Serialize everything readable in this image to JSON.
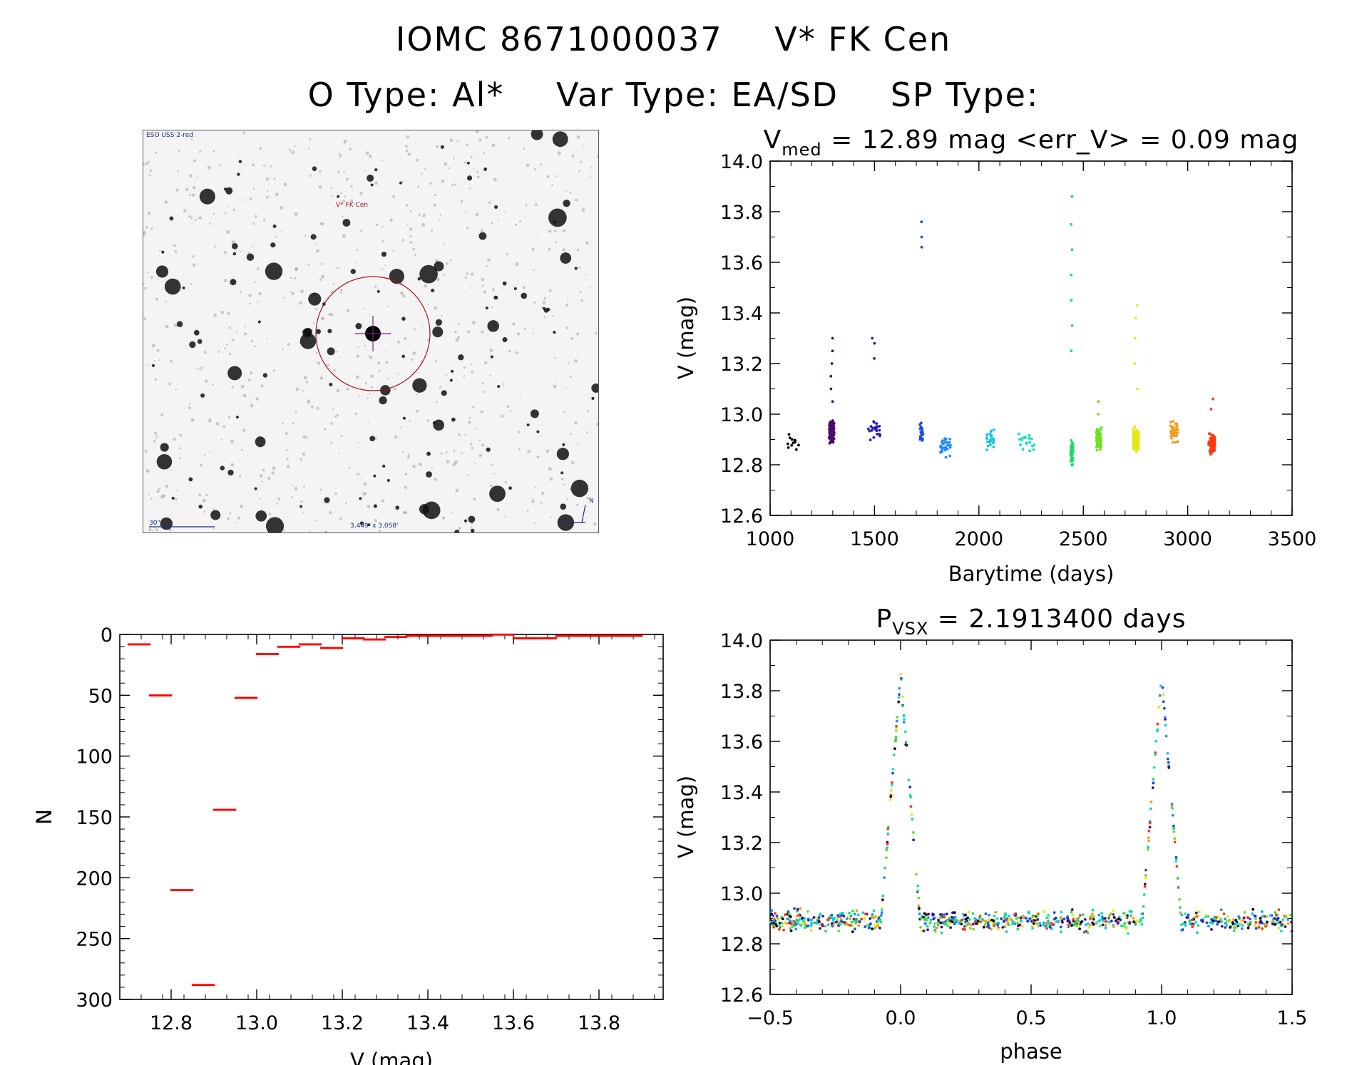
{
  "header": {
    "object_id": "IOMC 8671000037",
    "star_name": "V* FK Cen",
    "otype": "O Type: Al*",
    "vartype": "Var Type: EA/SD",
    "sptype": "SP Type:"
  },
  "finder_chart": {
    "survey": "ESO USS 2-red",
    "target_label": "V* FK Cen",
    "scale_label": "30\"",
    "fov_label": "3.449' x 3.058'",
    "north_label": "N",
    "east_label": "E"
  },
  "colors": {
    "hist": "#ff0000",
    "seasons": [
      "#000000",
      "#4b0a6e",
      "#2a1ab8",
      "#1d4fe0",
      "#1f8ff0",
      "#19c6e6",
      "#12e0c0",
      "#18e060",
      "#6ce020",
      "#e6e61a",
      "#f59a1a",
      "#ff3a10"
    ]
  },
  "chart_data": [
    {
      "type": "scatter",
      "name": "light-curve",
      "title_main": "V",
      "title_sub": "med",
      "title_rest": " = 12.89 mag <err_V> = 0.09 mag",
      "xlabel": "Barytime (days)",
      "ylabel": "V (mag)",
      "xlim": [
        1000,
        3500
      ],
      "ylim": [
        14.0,
        12.6
      ],
      "xticks": [
        "1000",
        "1500",
        "2000",
        "2500",
        "3000",
        "3500"
      ],
      "yticks": [
        "12.6",
        "12.8",
        "13.0",
        "13.2",
        "13.4",
        "13.6",
        "13.8",
        "14.0"
      ],
      "seasons": [
        {
          "t": 1108,
          "spread": 30,
          "med": 12.88,
          "faint": [],
          "n": 12
        },
        {
          "t": 1295,
          "spread": 12,
          "med": 12.93,
          "faint": [
            13.05,
            13.1,
            13.15,
            13.2,
            13.25,
            13.3
          ],
          "n": 120
        },
        {
          "t": 1500,
          "spread": 30,
          "med": 12.93,
          "faint": [
            13.22,
            13.28,
            13.3
          ],
          "n": 22
        },
        {
          "t": 1725,
          "spread": 8,
          "med": 12.92,
          "faint": [
            13.66,
            13.7,
            13.76
          ],
          "n": 25
        },
        {
          "t": 1840,
          "spread": 25,
          "med": 12.88,
          "faint": [],
          "n": 30
        },
        {
          "t": 2055,
          "spread": 18,
          "med": 12.9,
          "faint": [],
          "n": 25
        },
        {
          "t": 2230,
          "spread": 40,
          "med": 12.89,
          "faint": [],
          "n": 20
        },
        {
          "t": 2445,
          "spread": 6,
          "med": 12.85,
          "faint": [
            13.25,
            13.35,
            13.45,
            13.55,
            13.65,
            13.75,
            13.86
          ],
          "n": 55
        },
        {
          "t": 2575,
          "spread": 12,
          "med": 12.9,
          "faint": [
            13.0,
            13.05
          ],
          "n": 80
        },
        {
          "t": 2752,
          "spread": 14,
          "med": 12.9,
          "faint": [
            13.1,
            13.2,
            13.3,
            13.38,
            13.43
          ],
          "n": 150
        },
        {
          "t": 2935,
          "spread": 18,
          "med": 12.93,
          "faint": [],
          "n": 45
        },
        {
          "t": 3115,
          "spread": 15,
          "med": 12.88,
          "faint": [
            13.02,
            13.06
          ],
          "n": 80
        }
      ]
    },
    {
      "type": "bar",
      "name": "histogram",
      "xlabel": "V (mag)",
      "ylabel": "N",
      "xlim": [
        12.68,
        13.95
      ],
      "ylim": [
        0,
        300
      ],
      "xticks": [
        "12.8",
        "13.0",
        "13.2",
        "13.4",
        "13.6",
        "13.8"
      ],
      "yticks": [
        "0",
        "50",
        "100",
        "150",
        "200",
        "250",
        "300"
      ],
      "bin_width": 0.05,
      "bin_starts": [
        12.7,
        12.75,
        12.8,
        12.85,
        12.9,
        12.95,
        13.0,
        13.05,
        13.1,
        13.15,
        13.2,
        13.25,
        13.3,
        13.35,
        13.4,
        13.45,
        13.5,
        13.55,
        13.6,
        13.65,
        13.7,
        13.75,
        13.8,
        13.85
      ],
      "values": [
        8,
        50,
        210,
        288,
        144,
        52,
        16,
        10,
        8,
        11,
        3,
        4,
        2,
        1,
        1,
        1,
        1,
        0,
        3,
        3,
        1,
        1,
        1,
        1
      ]
    },
    {
      "type": "scatter",
      "name": "phase-curve",
      "title_main": "P",
      "title_sub": "VSX",
      "title_rest": " = 2.1913400 days",
      "xlabel": "phase",
      "ylabel": "V (mag)",
      "xlim": [
        -0.5,
        1.5
      ],
      "ylim": [
        14.0,
        12.6
      ],
      "xticks": [
        "−0.5",
        "0.0",
        "0.5",
        "1.0",
        "1.5"
      ],
      "yticks": [
        "12.6",
        "12.8",
        "13.0",
        "13.2",
        "13.4",
        "13.6",
        "13.8",
        "14.0"
      ],
      "eclipse_depth_mag": 13.86,
      "out_of_eclipse_mag": 12.89
    }
  ]
}
